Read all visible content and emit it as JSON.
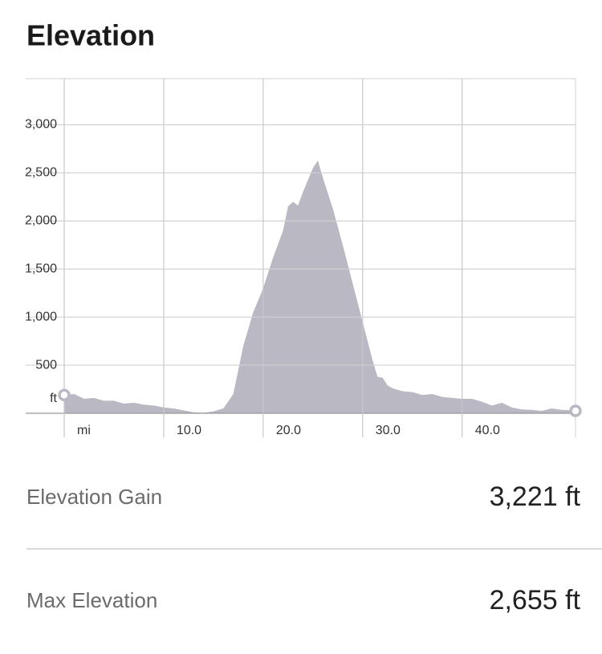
{
  "chart_data": {
    "type": "area",
    "title": "Elevation",
    "color": "#b9b8c3",
    "x": [
      0,
      1,
      2,
      3,
      4,
      5,
      6,
      7,
      8,
      9,
      10,
      11,
      12,
      13,
      14,
      15,
      16,
      17,
      17.5,
      18,
      19,
      20,
      21,
      22,
      22.5,
      23,
      23.5,
      24,
      25,
      25.5,
      26,
      27,
      28,
      29,
      30,
      31,
      31.5,
      32,
      32.5,
      33,
      34,
      35,
      36,
      37,
      38,
      39,
      40,
      41,
      42,
      43,
      44,
      45,
      46,
      47,
      48,
      49,
      50,
      51,
      51.4
    ],
    "values": [
      190,
      200,
      150,
      160,
      130,
      130,
      100,
      110,
      90,
      80,
      60,
      50,
      30,
      10,
      5,
      20,
      50,
      200,
      450,
      700,
      1050,
      1300,
      1620,
      1900,
      2150,
      2200,
      2160,
      2300,
      2550,
      2630,
      2450,
      2130,
      1750,
      1350,
      950,
      550,
      380,
      370,
      290,
      260,
      230,
      220,
      190,
      200,
      170,
      160,
      150,
      150,
      120,
      80,
      110,
      60,
      40,
      35,
      25,
      50,
      35,
      30,
      25
    ],
    "xlim": [
      0,
      51.4
    ],
    "ylim": [
      0,
      3480
    ],
    "xticks": [
      {
        "value": 0,
        "label": "mi"
      },
      {
        "value": 10,
        "label": "10.0"
      },
      {
        "value": 20,
        "label": "20.0"
      },
      {
        "value": 30,
        "label": "30.0"
      },
      {
        "value": 40,
        "label": "40.0"
      }
    ],
    "yticks": [
      {
        "value": 0,
        "label": "ft"
      },
      500,
      {
        "value": 1000,
        "label": "1,000"
      },
      {
        "value": 1500,
        "label": "1,500"
      },
      {
        "value": 2000,
        "label": "2,000"
      },
      {
        "value": 2500,
        "label": "2,500"
      },
      {
        "value": 3000,
        "label": "3,000"
      }
    ],
    "grid": true
  },
  "stats": [
    {
      "label": "Elevation Gain",
      "value": "3,221 ft"
    },
    {
      "label": "Max Elevation",
      "value": "2,655 ft"
    }
  ]
}
